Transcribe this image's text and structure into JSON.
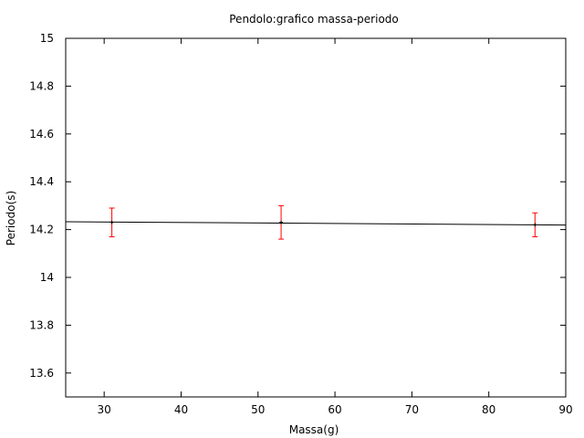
{
  "chart_data": {
    "type": "scatter",
    "title": "Pendolo:grafico massa-periodo",
    "xlabel": "Massa(g)",
    "ylabel": "Periodo(s)",
    "xlim": [
      25,
      90
    ],
    "ylim": [
      13.5,
      15
    ],
    "x_ticks": [
      30,
      40,
      50,
      60,
      70,
      80,
      90
    ],
    "y_ticks": [
      13.6,
      13.8,
      14,
      14.2,
      14.4,
      14.6,
      14.8,
      15
    ],
    "x_tick_labels": [
      "30",
      "40",
      "50",
      "60",
      "70",
      "80",
      "90"
    ],
    "y_tick_labels": [
      "13.6",
      "13.8",
      "14",
      "14.2",
      "14.4",
      "14.6",
      "14.8",
      "15"
    ],
    "grid": false,
    "points": [
      {
        "x": 31,
        "y": 14.23,
        "y_err_low": 14.17,
        "y_err_high": 14.29
      },
      {
        "x": 53,
        "y": 14.23,
        "y_err_low": 14.16,
        "y_err_high": 14.3
      },
      {
        "x": 86,
        "y": 14.22,
        "y_err_low": 14.17,
        "y_err_high": 14.27
      }
    ],
    "fit_line": {
      "x": [
        25,
        90
      ],
      "y": [
        14.233,
        14.219
      ]
    },
    "colors": {
      "error_bars": "#ff0000",
      "points": "#000000",
      "fit_line": "#000000",
      "axes": "#000000"
    }
  }
}
